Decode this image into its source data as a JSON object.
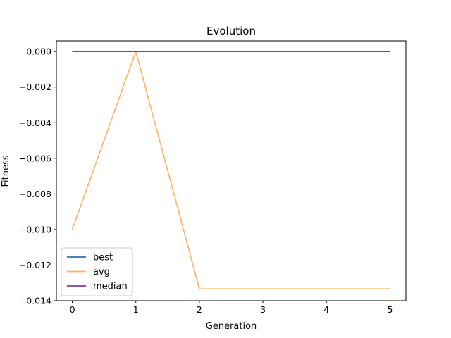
{
  "chart_data": {
    "type": "line",
    "title": "Evolution",
    "xlabel": "Generation",
    "ylabel": "Fitness",
    "x": [
      0,
      1,
      2,
      3,
      4,
      5
    ],
    "xlim": [
      -0.25,
      5.25
    ],
    "ylim": [
      -0.014,
      0.0006
    ],
    "xticks": [
      0,
      1,
      2,
      3,
      4,
      5
    ],
    "xtick_labels": [
      "0",
      "1",
      "2",
      "3",
      "4",
      "5"
    ],
    "yticks": [
      0.0,
      -0.002,
      -0.004,
      -0.006,
      -0.008,
      -0.01,
      -0.012,
      -0.014
    ],
    "ytick_labels": [
      "0.000",
      "−0.002",
      "−0.004",
      "−0.006",
      "−0.008",
      "−0.010",
      "−0.012",
      "−0.014"
    ],
    "grid": false,
    "legend_position": "lower-left",
    "series": [
      {
        "name": "best",
        "color": "#1f77b4",
        "values": [
          0,
          0,
          0,
          0,
          0,
          0
        ]
      },
      {
        "name": "avg",
        "color": "#ffb061",
        "values": [
          -0.01,
          0,
          -0.013333,
          -0.013333,
          -0.013333,
          -0.013333
        ]
      },
      {
        "name": "median",
        "color": "#7a3fa6",
        "values": [
          0,
          0,
          0,
          0,
          0,
          0
        ]
      }
    ]
  }
}
